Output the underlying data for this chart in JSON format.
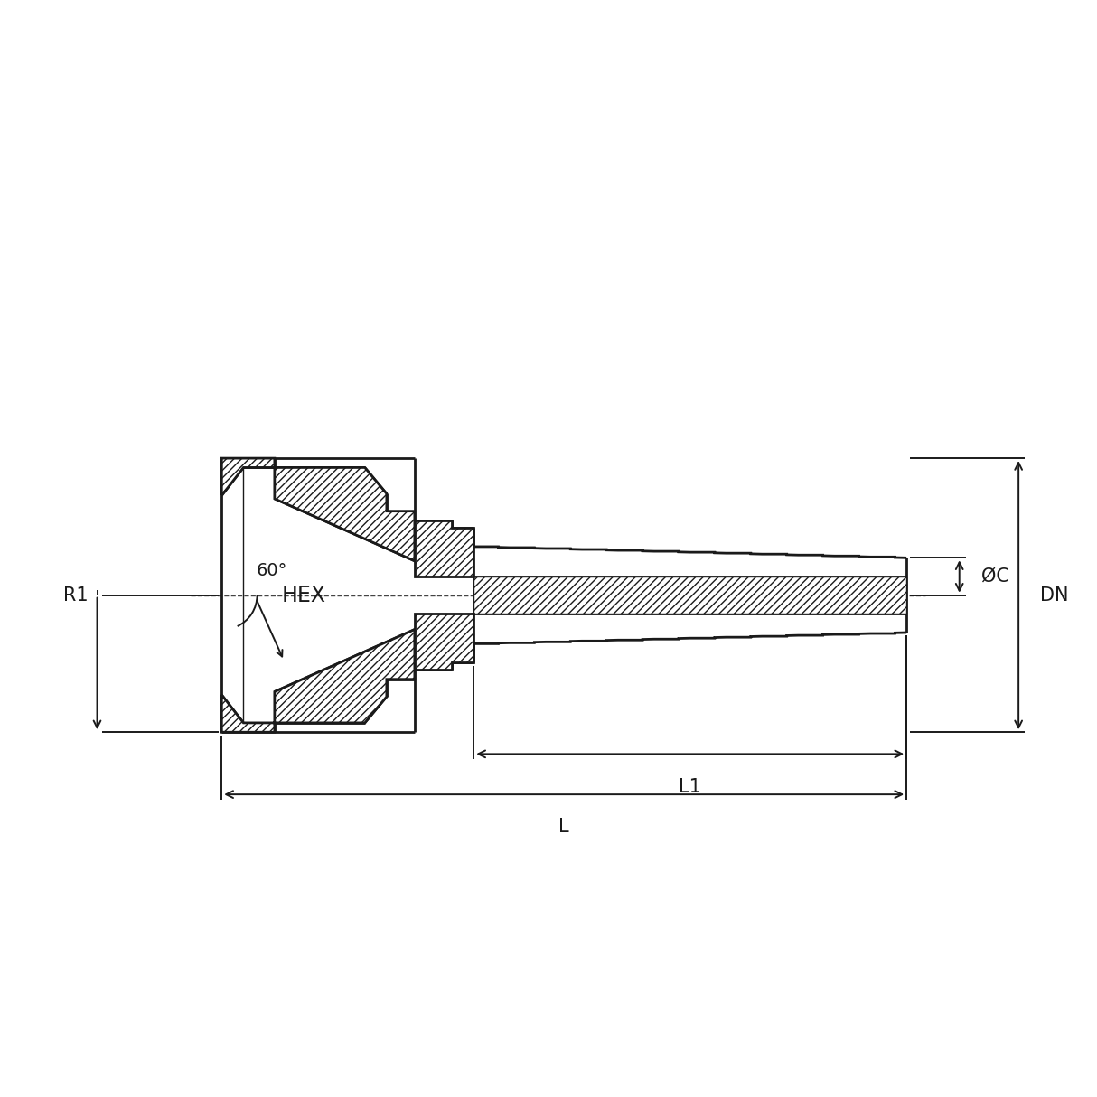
{
  "bg_color": "#ffffff",
  "line_color": "#1a1a1a",
  "figsize": [
    12.14,
    12.14
  ],
  "dpi": 100,
  "labels": {
    "HEX": "HEX",
    "L": "L",
    "L1": "L1",
    "DN": "DN",
    "OC": "ØC",
    "R1": "R1",
    "angle": "60°"
  },
  "lw_main": 2.0,
  "lw_dim": 1.4,
  "lw_thin": 1.0,
  "xlim": [
    -3.5,
    14.0
  ],
  "ylim": [
    -5.0,
    6.5
  ]
}
